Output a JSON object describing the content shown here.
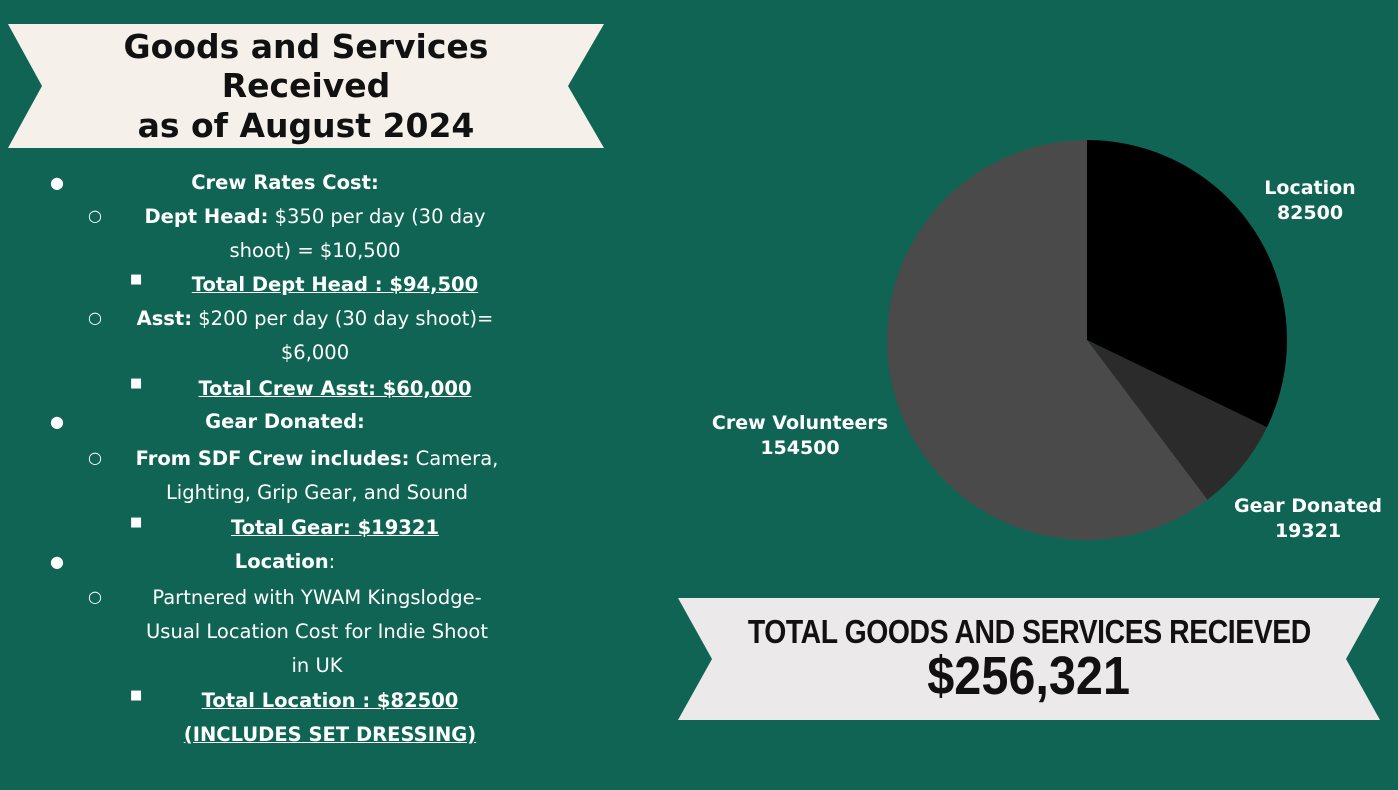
{
  "title": {
    "line1": "Goods and Services Received",
    "line2": "as of August 2024"
  },
  "sections": {
    "crew": {
      "heading": "Crew Rates Cost:",
      "dept_head": {
        "label": "Dept Head:",
        "text_line1": "$350 per day (30 day",
        "text_line2": "shoot) = $10,500",
        "total": "Total Dept Head : $94,500"
      },
      "asst": {
        "label": "Asst:",
        "text_line1": "$200 per day (30 day shoot)=",
        "text_line2": "$6,000",
        "total": "Total Crew Asst: $60,000"
      }
    },
    "gear": {
      "heading": "Gear Donated:",
      "sdf": {
        "label": "From SDF Crew includes:",
        "text_line1": "Camera,",
        "text_line2": "Lighting, Grip Gear, and Sound",
        "total": "Total Gear: $19321"
      }
    },
    "location": {
      "heading": "Location",
      "heading_suffix": ":",
      "text_line1": "Partnered with YWAM Kingslodge-",
      "text_line2": "Usual Location Cost for Indie Shoot",
      "text_line3": "in UK",
      "total_line1": "Total Location :  $82500",
      "total_line2": "(INCLUDES SET DRESSING) "
    }
  },
  "total": {
    "label": "TOTAL GOODS AND SERVICES RECIEVED",
    "value": "$256,321"
  },
  "colors": {
    "background": "#106454",
    "ribbon": "#f5f1ea",
    "total_ribbon": "#ece9ea",
    "text": "#ffffff"
  },
  "chart_data": {
    "type": "pie",
    "start_angle_deg": 0,
    "direction": "clockwise",
    "slices": [
      {
        "label": "Location",
        "value": 82500,
        "color": "#000000"
      },
      {
        "label": "Gear Donated",
        "value": 19321,
        "color": "#2b2b2b"
      },
      {
        "label": "Crew Volunteers",
        "value": 154500,
        "color": "#4a4a4a"
      }
    ]
  }
}
